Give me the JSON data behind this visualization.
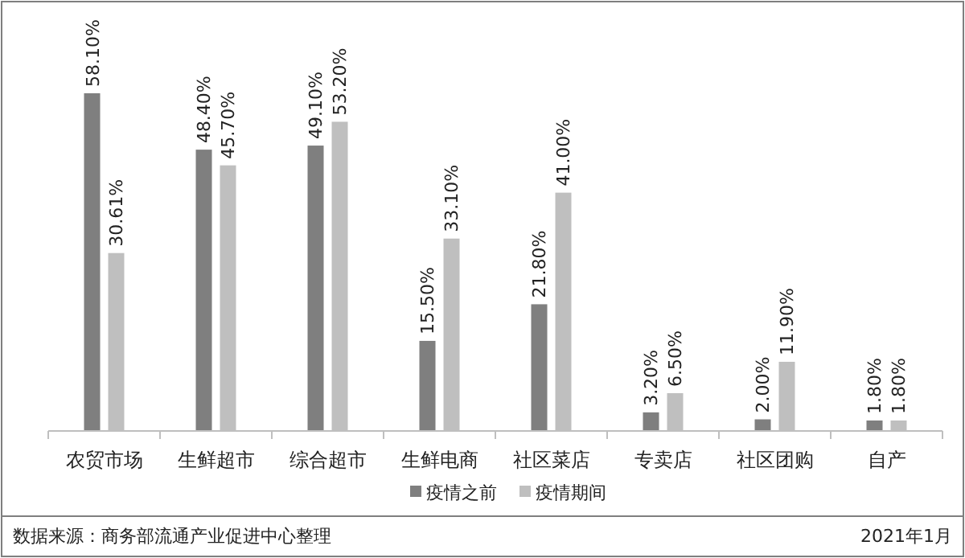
{
  "chart_data": {
    "type": "bar",
    "categories": [
      "农贸市场",
      "生鲜超市",
      "综合超市",
      "生鲜电商",
      "社区菜店",
      "专卖店",
      "社区团购",
      "自产"
    ],
    "series": [
      {
        "name": "疫情之前",
        "color": "#7f7f7f",
        "values": [
          58.1,
          48.4,
          49.1,
          15.5,
          21.8,
          3.2,
          2.0,
          1.8
        ],
        "value_labels": [
          "58.10%",
          "48.40%",
          "49.10%",
          "15.50%",
          "21.80%",
          "3.20%",
          "2.00%",
          "1.80%"
        ]
      },
      {
        "name": "疫情期间",
        "color": "#bfbfbf",
        "values": [
          30.61,
          45.7,
          53.2,
          33.1,
          41.0,
          6.5,
          11.9,
          1.8
        ],
        "value_labels": [
          "30.61%",
          "45.70%",
          "53.20%",
          "33.10%",
          "41.00%",
          "6.50%",
          "11.90%",
          "1.80%"
        ]
      }
    ],
    "legend": "bottom",
    "annotations": [
      "数据来源：商务部流通产业促进中心整理",
      "2021年1月"
    ]
  }
}
